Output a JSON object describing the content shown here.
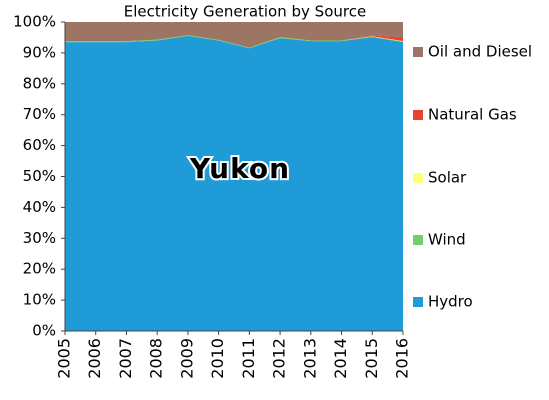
{
  "chart_data": {
    "type": "stacked_area",
    "title": "Electricity Generation by Source",
    "annotation": "Yukon",
    "categories": [
      "2005",
      "2006",
      "2007",
      "2008",
      "2009",
      "2010",
      "2011",
      "2012",
      "2013",
      "2014",
      "2015",
      "2016"
    ],
    "series": [
      {
        "name": "Hydro",
        "color": "#1f9bd7",
        "values": [
          93.5,
          93.5,
          93.5,
          94,
          95.5,
          94,
          91.5,
          94.8,
          93.8,
          93.8,
          95.1,
          93.5
        ]
      },
      {
        "name": "Wind",
        "color": "#72d06a",
        "values": [
          0.3,
          0.3,
          0.3,
          0.3,
          0.2,
          0.2,
          0.2,
          0.3,
          0.2,
          0.2,
          0.2,
          0.2
        ]
      },
      {
        "name": "Solar",
        "color": "#ffff80",
        "values": [
          0,
          0,
          0,
          0,
          0,
          0,
          0,
          0,
          0,
          0,
          0.1,
          0.1
        ]
      },
      {
        "name": "Natural Gas",
        "color": "#e8432d",
        "values": [
          0,
          0,
          0,
          0,
          0,
          0,
          0,
          0,
          0,
          0,
          0.3,
          1.3
        ]
      },
      {
        "name": "Oil and Diesel",
        "color": "#9c7564",
        "values": [
          6.2,
          6.2,
          6.2,
          5.7,
          4.3,
          5.8,
          8.3,
          4.9,
          6,
          6,
          4.3,
          4.9
        ]
      }
    ],
    "ylim": [
      0,
      100
    ],
    "yticks": [
      {
        "value": 0,
        "label": "0%"
      },
      {
        "value": 10,
        "label": "10%"
      },
      {
        "value": 20,
        "label": "20%"
      },
      {
        "value": 30,
        "label": "30%"
      },
      {
        "value": 40,
        "label": "40%"
      },
      {
        "value": 50,
        "label": "50%"
      },
      {
        "value": 60,
        "label": "60%"
      },
      {
        "value": 70,
        "label": "70%"
      },
      {
        "value": 80,
        "label": "80%"
      },
      {
        "value": 90,
        "label": "90%"
      },
      {
        "value": 100,
        "label": "100%"
      }
    ],
    "grid": false,
    "legend": "right"
  }
}
